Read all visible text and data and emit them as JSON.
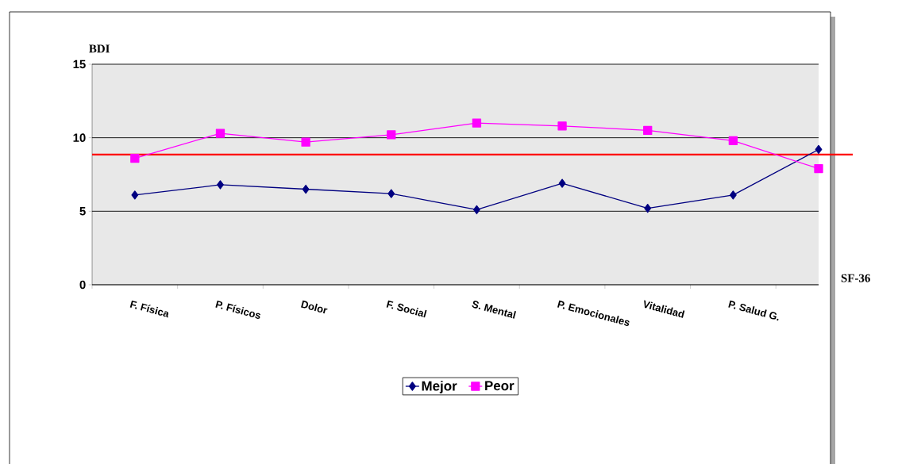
{
  "chart_data": {
    "type": "line",
    "ylabel": "BDI",
    "xlabel": "SF-36",
    "categories": [
      "F. Física",
      "P. Físicos",
      "Dolor",
      "F. Social",
      "S. Mental",
      "P. Emocionales",
      "Vitalidad",
      "P. Salud G.",
      null
    ],
    "series": [
      {
        "name": "Mejor",
        "color": "#000080",
        "marker": "diamond",
        "values": [
          6.1,
          6.8,
          6.5,
          6.2,
          5.1,
          6.9,
          5.2,
          6.1,
          9.2
        ]
      },
      {
        "name": "Peor",
        "color": "#ff00ff",
        "marker": "square",
        "values": [
          8.6,
          10.3,
          9.7,
          10.2,
          11.0,
          10.8,
          10.5,
          9.8,
          7.9
        ]
      }
    ],
    "ylim": [
      0,
      15
    ],
    "yticks": [
      0,
      5,
      10,
      15
    ],
    "grid": "y",
    "legend": "bottom",
    "ref_lines": [
      {
        "axis": "y",
        "value": 8.85,
        "color": "#ff0000"
      }
    ]
  }
}
